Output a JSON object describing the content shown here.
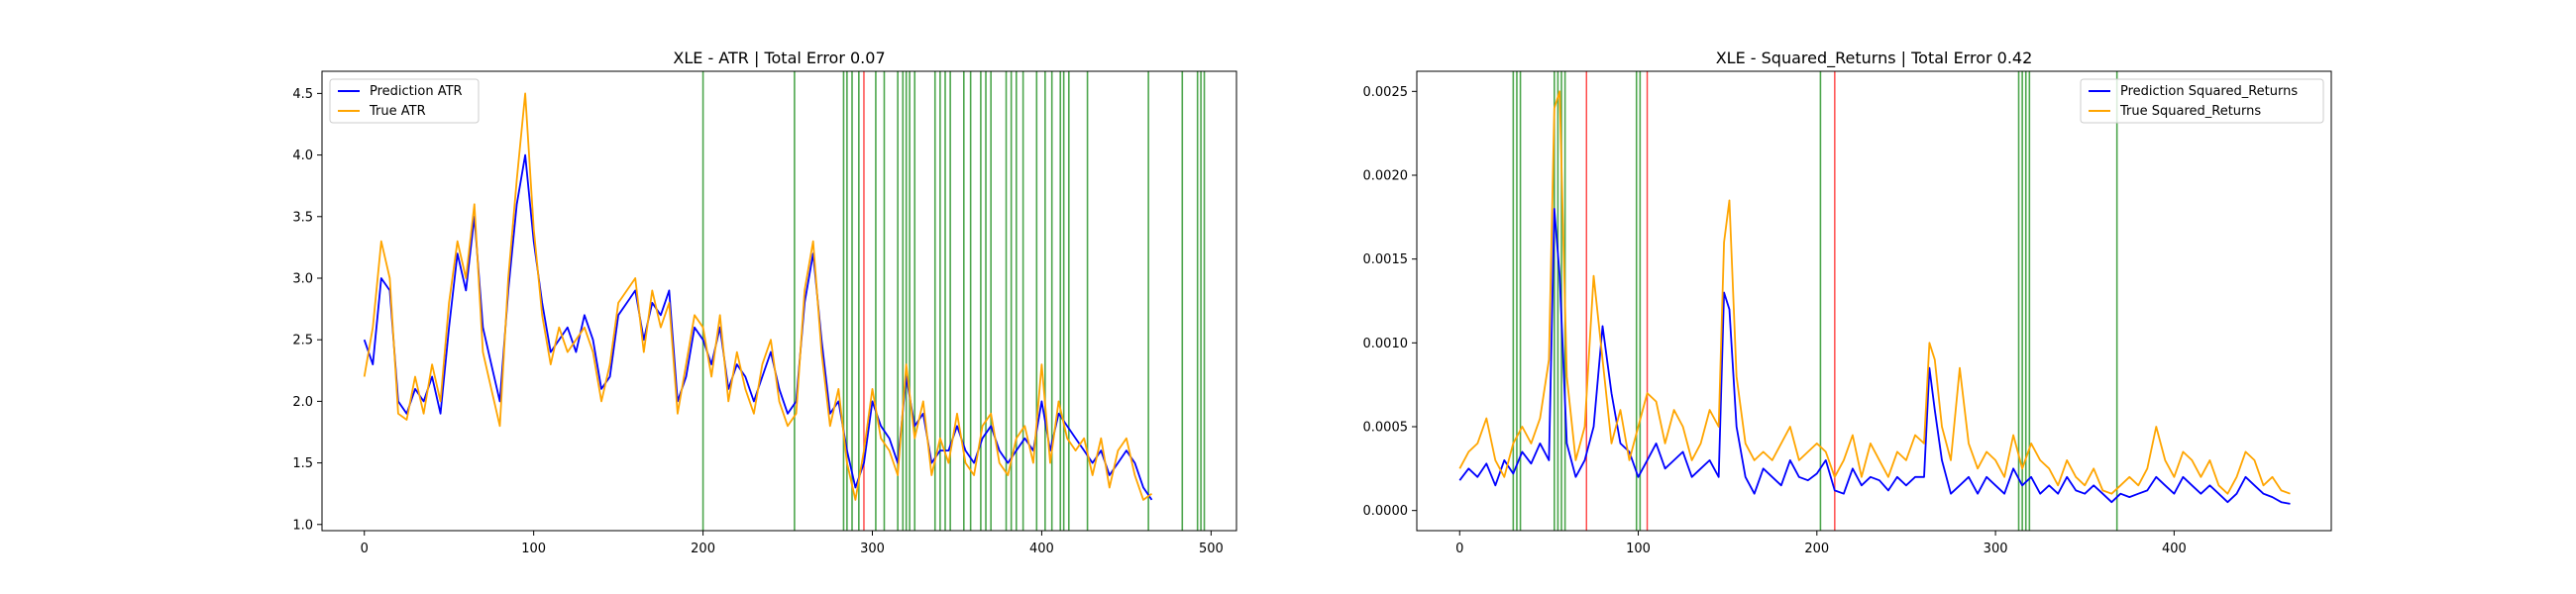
{
  "chart_data": [
    {
      "type": "line",
      "title": "XLE - ATR | Total Error 0.07",
      "xlim": [
        -25,
        515
      ],
      "ylim": [
        0.95,
        4.68
      ],
      "x_ticks": [
        0,
        100,
        200,
        300,
        400,
        500
      ],
      "x_tick_labels": [
        "0",
        "100",
        "200",
        "300",
        "400",
        "500"
      ],
      "y_ticks": [
        1.0,
        1.5,
        2.0,
        2.5,
        3.0,
        3.5,
        4.0,
        4.5
      ],
      "y_tick_labels": [
        "1.0",
        "1.5",
        "2.0",
        "2.5",
        "3.0",
        "3.5",
        "4.0",
        "4.5"
      ],
      "legend": {
        "placement": "upper-left",
        "entries": [
          "Prediction ATR",
          "True ATR"
        ]
      },
      "series": [
        {
          "name": "Prediction ATR",
          "color": "#0000ff",
          "x": [
            0,
            5,
            10,
            15,
            20,
            25,
            30,
            35,
            40,
            45,
            50,
            55,
            60,
            65,
            70,
            75,
            80,
            85,
            90,
            95,
            100,
            105,
            110,
            115,
            120,
            125,
            130,
            135,
            140,
            145,
            150,
            155,
            160,
            165,
            170,
            175,
            180,
            185,
            190,
            195,
            200,
            205,
            210,
            215,
            220,
            225,
            230,
            235,
            240,
            245,
            250,
            255,
            260,
            265,
            270,
            275,
            280,
            285,
            290,
            295,
            300,
            305,
            310,
            315,
            320,
            325,
            330,
            335,
            340,
            345,
            350,
            355,
            360,
            365,
            370,
            375,
            380,
            385,
            390,
            395,
            400,
            405,
            410,
            415,
            420,
            425,
            430,
            435,
            440,
            445,
            450,
            455,
            460,
            465
          ],
          "values": [
            2.5,
            2.3,
            3.0,
            2.9,
            2.0,
            1.9,
            2.1,
            2.0,
            2.2,
            1.9,
            2.6,
            3.2,
            2.9,
            3.5,
            2.6,
            2.3,
            2.0,
            2.9,
            3.6,
            4.0,
            3.3,
            2.8,
            2.4,
            2.5,
            2.6,
            2.4,
            2.7,
            2.5,
            2.1,
            2.2,
            2.7,
            2.8,
            2.9,
            2.5,
            2.8,
            2.7,
            2.9,
            2.0,
            2.2,
            2.6,
            2.5,
            2.3,
            2.6,
            2.1,
            2.3,
            2.2,
            2.0,
            2.2,
            2.4,
            2.1,
            1.9,
            2.0,
            2.8,
            3.2,
            2.5,
            1.9,
            2.0,
            1.6,
            1.3,
            1.5,
            2.0,
            1.8,
            1.7,
            1.5,
            2.2,
            1.8,
            1.9,
            1.5,
            1.6,
            1.6,
            1.8,
            1.6,
            1.5,
            1.7,
            1.8,
            1.6,
            1.5,
            1.6,
            1.7,
            1.6,
            2.0,
            1.6,
            1.9,
            1.8,
            1.7,
            1.6,
            1.5,
            1.6,
            1.4,
            1.5,
            1.6,
            1.5,
            1.3,
            1.2
          ]
        },
        {
          "name": "True ATR",
          "color": "#ffa500",
          "x": [
            0,
            5,
            10,
            15,
            20,
            25,
            30,
            35,
            40,
            45,
            50,
            55,
            60,
            65,
            70,
            75,
            80,
            85,
            90,
            95,
            100,
            105,
            110,
            115,
            120,
            125,
            130,
            135,
            140,
            145,
            150,
            155,
            160,
            165,
            170,
            175,
            180,
            185,
            190,
            195,
            200,
            205,
            210,
            215,
            220,
            225,
            230,
            235,
            240,
            245,
            250,
            255,
            260,
            265,
            270,
            275,
            280,
            285,
            290,
            295,
            300,
            305,
            310,
            315,
            320,
            325,
            330,
            335,
            340,
            345,
            350,
            355,
            360,
            365,
            370,
            375,
            380,
            385,
            390,
            395,
            400,
            405,
            410,
            415,
            420,
            425,
            430,
            435,
            440,
            445,
            450,
            455,
            460,
            465
          ],
          "values": [
            2.2,
            2.6,
            3.3,
            3.0,
            1.9,
            1.85,
            2.2,
            1.9,
            2.3,
            2.0,
            2.8,
            3.3,
            3.0,
            3.6,
            2.4,
            2.1,
            1.8,
            3.0,
            3.8,
            4.5,
            3.4,
            2.7,
            2.3,
            2.6,
            2.4,
            2.5,
            2.6,
            2.4,
            2.0,
            2.3,
            2.8,
            2.9,
            3.0,
            2.4,
            2.9,
            2.6,
            2.8,
            1.9,
            2.3,
            2.7,
            2.6,
            2.2,
            2.7,
            2.0,
            2.4,
            2.1,
            1.9,
            2.3,
            2.5,
            2.0,
            1.8,
            1.9,
            2.9,
            3.3,
            2.4,
            1.8,
            2.1,
            1.5,
            1.2,
            1.6,
            2.1,
            1.7,
            1.6,
            1.4,
            2.3,
            1.7,
            2.0,
            1.4,
            1.7,
            1.5,
            1.9,
            1.5,
            1.4,
            1.8,
            1.9,
            1.5,
            1.4,
            1.7,
            1.8,
            1.5,
            2.3,
            1.5,
            2.0,
            1.7,
            1.6,
            1.7,
            1.4,
            1.7,
            1.3,
            1.6,
            1.7,
            1.4,
            1.2,
            1.25
          ]
        }
      ],
      "vlines_green": [
        200,
        254,
        283,
        285,
        288,
        292,
        302,
        307,
        315,
        318,
        320,
        322,
        325,
        337,
        340,
        343,
        346,
        354,
        358,
        364,
        367,
        370,
        379,
        382,
        385,
        389,
        397,
        402,
        406,
        411,
        413,
        416,
        427,
        463,
        483,
        492,
        494,
        496
      ],
      "vlines_red": [
        295
      ]
    },
    {
      "type": "line",
      "title": "XLE - Squared_Returns | Total Error 0.42",
      "xlim": [
        -24,
        488
      ],
      "ylim": [
        -0.00012,
        0.00262
      ],
      "x_ticks": [
        0,
        100,
        200,
        300,
        400
      ],
      "x_tick_labels": [
        "0",
        "100",
        "200",
        "300",
        "400"
      ],
      "y_ticks": [
        0.0,
        0.0005,
        0.001,
        0.0015,
        0.002,
        0.0025
      ],
      "y_tick_labels": [
        "0.0000",
        "0.0005",
        "0.0010",
        "0.0015",
        "0.0020",
        "0.0025"
      ],
      "legend": {
        "placement": "upper-right",
        "entries": [
          "Prediction Squared_Returns",
          "True Squared_Returns"
        ]
      },
      "series": [
        {
          "name": "Prediction Squared_Returns",
          "color": "#0000ff",
          "x": [
            0,
            5,
            10,
            15,
            20,
            25,
            30,
            35,
            40,
            45,
            50,
            53,
            56,
            60,
            65,
            70,
            75,
            80,
            85,
            90,
            95,
            100,
            105,
            110,
            115,
            120,
            125,
            130,
            135,
            140,
            145,
            148,
            151,
            155,
            160,
            165,
            170,
            175,
            180,
            185,
            190,
            195,
            200,
            205,
            210,
            215,
            220,
            225,
            230,
            235,
            240,
            245,
            250,
            255,
            260,
            263,
            266,
            270,
            275,
            280,
            285,
            290,
            295,
            300,
            305,
            310,
            315,
            320,
            325,
            330,
            335,
            340,
            345,
            350,
            355,
            360,
            365,
            370,
            375,
            380,
            385,
            390,
            395,
            400,
            405,
            410,
            415,
            420,
            425,
            430,
            435,
            440,
            445,
            450,
            455,
            460,
            465
          ],
          "values": [
            0.00018,
            0.00025,
            0.0002,
            0.00028,
            0.00015,
            0.0003,
            0.00022,
            0.00035,
            0.00028,
            0.0004,
            0.0003,
            0.0018,
            0.0014,
            0.0004,
            0.0002,
            0.0003,
            0.0005,
            0.0011,
            0.0007,
            0.0004,
            0.00035,
            0.0002,
            0.0003,
            0.0004,
            0.00025,
            0.0003,
            0.00035,
            0.0002,
            0.00025,
            0.0003,
            0.0002,
            0.0013,
            0.0012,
            0.0005,
            0.0002,
            0.0001,
            0.00025,
            0.0002,
            0.00015,
            0.0003,
            0.0002,
            0.00018,
            0.00022,
            0.0003,
            0.00012,
            0.0001,
            0.00025,
            0.00015,
            0.0002,
            0.00018,
            0.00012,
            0.0002,
            0.00015,
            0.0002,
            0.0002,
            0.00085,
            0.0006,
            0.0003,
            0.0001,
            0.00015,
            0.0002,
            0.0001,
            0.0002,
            0.00015,
            0.0001,
            0.00025,
            0.00015,
            0.0002,
            0.0001,
            0.00015,
            0.0001,
            0.0002,
            0.00012,
            0.0001,
            0.00015,
            0.0001,
            5e-05,
            0.0001,
            8e-05,
            0.0001,
            0.00012,
            0.0002,
            0.00015,
            0.0001,
            0.0002,
            0.00015,
            0.0001,
            0.00015,
            0.0001,
            5e-05,
            0.0001,
            0.0002,
            0.00015,
            0.0001,
            8e-05,
            5e-05,
            4e-05
          ]
        },
        {
          "name": "True Squared_Returns",
          "color": "#ffa500",
          "x": [
            0,
            5,
            10,
            15,
            20,
            25,
            30,
            35,
            40,
            45,
            50,
            53,
            56,
            60,
            65,
            70,
            75,
            80,
            85,
            90,
            95,
            100,
            105,
            110,
            115,
            120,
            125,
            130,
            135,
            140,
            145,
            148,
            151,
            155,
            160,
            165,
            170,
            175,
            180,
            185,
            190,
            195,
            200,
            205,
            210,
            215,
            220,
            225,
            230,
            235,
            240,
            245,
            250,
            255,
            260,
            263,
            266,
            270,
            275,
            280,
            285,
            290,
            295,
            300,
            305,
            310,
            315,
            320,
            325,
            330,
            335,
            340,
            345,
            350,
            355,
            360,
            365,
            370,
            375,
            380,
            385,
            390,
            395,
            400,
            405,
            410,
            415,
            420,
            425,
            430,
            435,
            440,
            445,
            450,
            455,
            460,
            465
          ],
          "values": [
            0.00025,
            0.00035,
            0.0004,
            0.00055,
            0.0003,
            0.0002,
            0.0004,
            0.0005,
            0.0004,
            0.00055,
            0.0009,
            0.0024,
            0.0025,
            0.0008,
            0.0003,
            0.0005,
            0.0014,
            0.0009,
            0.0004,
            0.0006,
            0.0003,
            0.0005,
            0.0007,
            0.00065,
            0.0004,
            0.0006,
            0.0005,
            0.0003,
            0.0004,
            0.0006,
            0.0005,
            0.0016,
            0.00185,
            0.0008,
            0.0004,
            0.0003,
            0.00035,
            0.0003,
            0.0004,
            0.0005,
            0.0003,
            0.00035,
            0.0004,
            0.00035,
            0.0002,
            0.0003,
            0.00045,
            0.0002,
            0.0004,
            0.0003,
            0.0002,
            0.00035,
            0.0003,
            0.00045,
            0.0004,
            0.001,
            0.0009,
            0.0005,
            0.0003,
            0.00085,
            0.0004,
            0.00025,
            0.00035,
            0.0003,
            0.0002,
            0.00045,
            0.00025,
            0.0004,
            0.0003,
            0.00025,
            0.00015,
            0.0003,
            0.0002,
            0.00015,
            0.00025,
            0.00012,
            0.0001,
            0.00015,
            0.0002,
            0.00015,
            0.00025,
            0.0005,
            0.0003,
            0.0002,
            0.00035,
            0.0003,
            0.0002,
            0.0003,
            0.00015,
            0.0001,
            0.0002,
            0.00035,
            0.0003,
            0.00015,
            0.0002,
            0.00012,
            0.0001
          ]
        }
      ],
      "vlines_green": [
        30,
        32,
        34,
        53,
        55,
        57,
        59,
        99,
        101,
        202,
        313,
        315,
        317,
        319,
        368
      ],
      "vlines_red": [
        71,
        105,
        210
      ]
    }
  ]
}
